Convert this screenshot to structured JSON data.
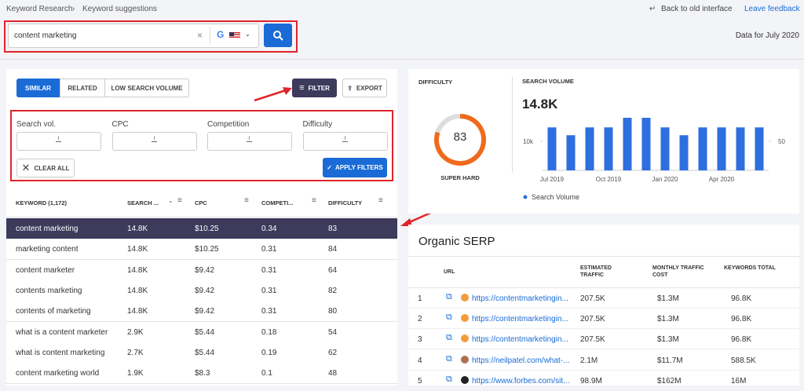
{
  "breadcrumb": [
    "Keyword Research",
    "Keyword suggestions"
  ],
  "top_links": [
    "Back to old interface",
    "Leave feedback"
  ],
  "search": {
    "query": "content marketing"
  },
  "data_date": "Data for July 2020",
  "tabs": [
    "SIMILAR",
    "RELATED",
    "LOW SEARCH VOLUME"
  ],
  "buttons": {
    "filter": "FILTER",
    "export": "EXPORT",
    "clear": "CLEAR ALL",
    "apply": "APPLY FILTERS"
  },
  "filters": [
    "Search vol.",
    "CPC",
    "Competition",
    "Difficulty"
  ],
  "keyword_table": {
    "columns": [
      "KEYWORD (1,172)",
      "SEARCH ...",
      "CPC",
      "COMPETI...",
      "DIFFICULTY"
    ],
    "rows": [
      [
        "content marketing",
        "14.8K",
        "$10.25",
        "0.34",
        "83"
      ],
      [
        "marketing content",
        "14.8K",
        "$10.25",
        "0.31",
        "84"
      ],
      [
        "content marketer",
        "14.8K",
        "$9.42",
        "0.31",
        "64"
      ],
      [
        "contents marketing",
        "14.8K",
        "$9.42",
        "0.31",
        "82"
      ],
      [
        "contents of marketing",
        "14.8K",
        "$9.42",
        "0.31",
        "80"
      ],
      [
        "what is a content marketer",
        "2.9K",
        "$5.44",
        "0.18",
        "54"
      ],
      [
        "what is content marketing",
        "2.7K",
        "$5.44",
        "0.19",
        "62"
      ],
      [
        "content marketing world",
        "1.9K",
        "$8.3",
        "0.1",
        "48"
      ]
    ]
  },
  "difficulty": {
    "title": "DIFFICULTY",
    "value": "83",
    "label": "SUPER HARD"
  },
  "search_volume": {
    "title": "SEARCH VOLUME",
    "total": "14.8K"
  },
  "chart_data": {
    "type": "bar",
    "categories": [
      "Jul 2019",
      null,
      null,
      "Oct 2019",
      null,
      null,
      "Jan 2020",
      null,
      null,
      "Apr 2020",
      null,
      null
    ],
    "series": [
      {
        "name": "Search Volume",
        "color": "#2e6fe0",
        "values": [
          14800,
          12100,
          14800,
          14800,
          18100,
          18100,
          14800,
          12100,
          14800,
          14800,
          14800,
          14800
        ]
      }
    ],
    "ylim": [
      0,
      20000
    ],
    "yticks": [
      {
        "value": 10000,
        "label": "10k"
      }
    ],
    "y2lim": [
      0,
      100
    ],
    "y2ticks": [
      50
    ],
    "legend": "bottom-left"
  },
  "organic_serp": {
    "title": "Organic SERP",
    "columns": [
      "URL",
      "ESTIMATED TRAFFIC",
      "MONTHLY TRAFFIC COST",
      "KEYWORDS TOTAL"
    ],
    "rows": [
      [
        "1",
        "https://contentmarketingin...",
        "207.5K",
        "$1.3M",
        "96.8K"
      ],
      [
        "2",
        "https://contentmarketingin...",
        "207.5K",
        "$1.3M",
        "96.8K"
      ],
      [
        "3",
        "https://contentmarketingin...",
        "207.5K",
        "$1.3M",
        "96.8K"
      ],
      [
        "4",
        "https://neilpatel.com/what-...",
        "2.1M",
        "$11.7M",
        "588.5K"
      ],
      [
        "5",
        "https://www.forbes.com/sit...",
        "98.9M",
        "$162M",
        "16M"
      ]
    ]
  }
}
